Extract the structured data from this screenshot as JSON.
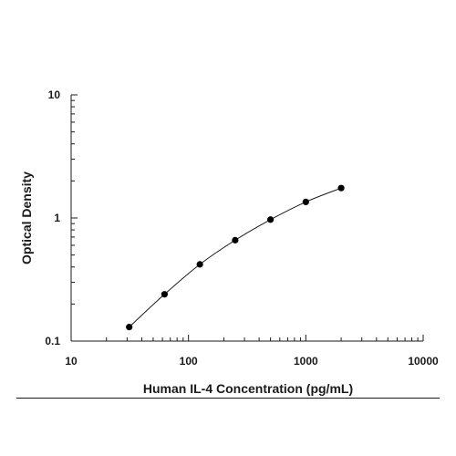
{
  "chart_data": {
    "type": "scatter",
    "title": "",
    "xlabel": "Human IL-4 Concentration (pg/mL)",
    "ylabel": "Optical Density",
    "x_scale": "log",
    "y_scale": "log",
    "xlim": [
      10,
      10000
    ],
    "ylim": [
      0.1,
      10
    ],
    "x_ticks": [
      "10",
      "100",
      "1000",
      "10000"
    ],
    "y_ticks": [
      "0.1",
      "1",
      "10"
    ],
    "grid": false,
    "legend": "none",
    "series": [
      {
        "x": [
          31.25,
          62.5,
          125,
          250,
          500,
          1000,
          2000
        ],
        "y": [
          0.13,
          0.24,
          0.42,
          0.66,
          0.97,
          1.35,
          1.75
        ],
        "marker": "circle",
        "color": "#000000",
        "fit_line": true
      }
    ]
  }
}
